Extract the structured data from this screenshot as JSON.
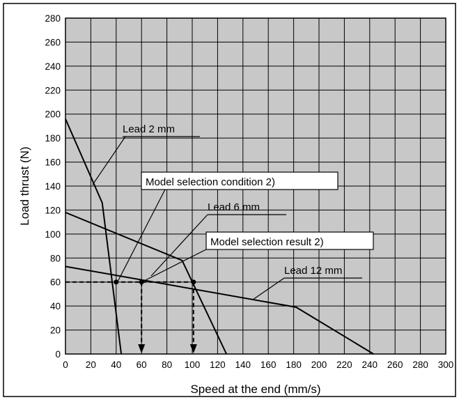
{
  "chart_data": {
    "type": "line",
    "title": "",
    "xlabel": "Speed at the end (mm/s)",
    "ylabel": "Load thrust (N)",
    "xlim": [
      0,
      300
    ],
    "ylim": [
      0,
      280
    ],
    "xticks": [
      0,
      20,
      40,
      60,
      80,
      100,
      120,
      140,
      160,
      180,
      200,
      220,
      240,
      260,
      280,
      300
    ],
    "yticks": [
      0,
      20,
      40,
      60,
      80,
      100,
      120,
      140,
      160,
      180,
      200,
      220,
      240,
      260,
      280
    ],
    "grid": true,
    "series": [
      {
        "name": "Lead 2 mm",
        "x": [
          0,
          29,
          44
        ],
        "y": [
          196,
          126,
          0
        ]
      },
      {
        "name": "Lead 6 mm",
        "x": [
          0,
          92,
          127
        ],
        "y": [
          118,
          78,
          0
        ]
      },
      {
        "name": "Lead 12 mm",
        "x": [
          0,
          182,
          243
        ],
        "y": [
          73,
          39,
          0
        ]
      }
    ],
    "annotations": [
      {
        "label": "Lead 2 mm",
        "series": "Lead 2 mm"
      },
      {
        "label": "Lead 6 mm",
        "series": "Lead 6 mm"
      },
      {
        "label": "Lead 12 mm",
        "series": "Lead 12 mm"
      },
      {
        "label": "Model selection condition 2)",
        "boxed": true
      },
      {
        "label": "Model selection result 2)",
        "boxed": true
      }
    ],
    "reference_points": [
      {
        "x": 40,
        "y": 60
      },
      {
        "x": 60,
        "y": 60
      },
      {
        "x": 101,
        "y": 60
      }
    ],
    "reference_line_y": 60,
    "reference_arrows_x": [
      60,
      101
    ]
  }
}
